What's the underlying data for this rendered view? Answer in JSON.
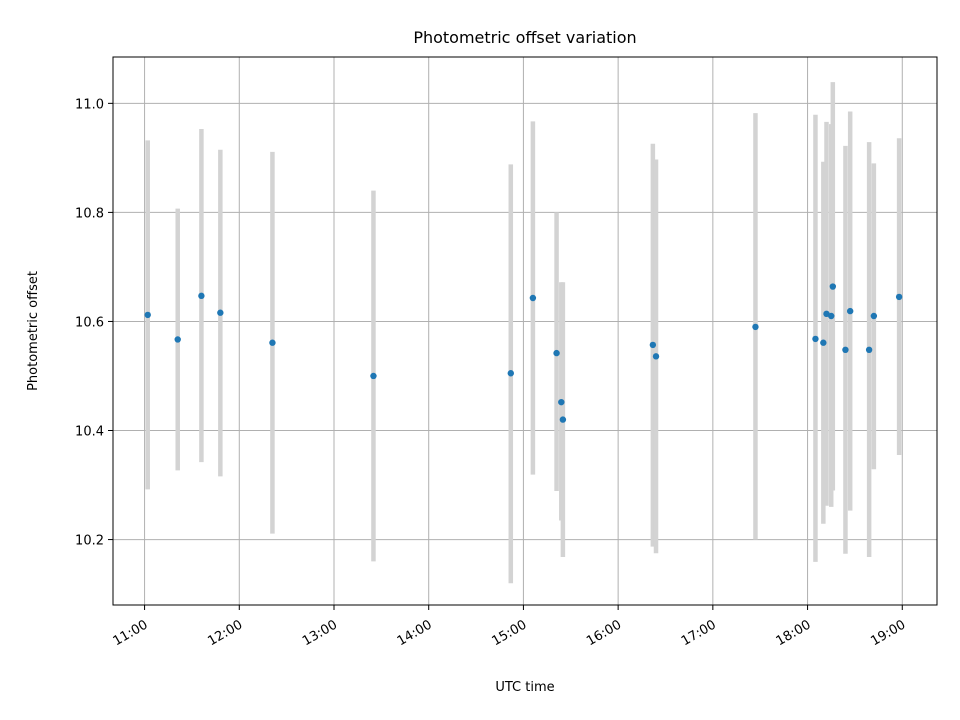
{
  "chart_data": {
    "type": "scatter",
    "title": "Photometric offset variation",
    "xlabel": "UTC time",
    "ylabel": "Photometric offset",
    "x_ticks": [
      "11:00",
      "12:00",
      "13:00",
      "14:00",
      "15:00",
      "16:00",
      "17:00",
      "18:00",
      "19:00"
    ],
    "y_ticks": [
      "10.2",
      "10.4",
      "10.6",
      "10.8",
      "11.0"
    ],
    "xlim": [
      "10:40",
      "19:22"
    ],
    "ylim": [
      10.08,
      11.085
    ],
    "grid": true,
    "colors": {
      "points": "#1f77b4",
      "errorbars": "#d3d3d3",
      "grid": "#b0b0b0"
    },
    "series": [
      {
        "points": [
          {
            "x": "11:02",
            "y": 10.612,
            "err_low": 10.292,
            "err_high": 10.932
          },
          {
            "x": "11:21",
            "y": 10.567,
            "err_low": 10.327,
            "err_high": 10.807
          },
          {
            "x": "11:36",
            "y": 10.647,
            "err_low": 10.342,
            "err_high": 10.953
          },
          {
            "x": "11:48",
            "y": 10.616,
            "err_low": 10.316,
            "err_high": 10.915
          },
          {
            "x": "12:21",
            "y": 10.561,
            "err_low": 10.211,
            "err_high": 10.911
          },
          {
            "x": "13:25",
            "y": 10.5,
            "err_low": 10.16,
            "err_high": 10.84
          },
          {
            "x": "14:52",
            "y": 10.505,
            "err_low": 10.12,
            "err_high": 10.888
          },
          {
            "x": "15:06",
            "y": 10.643,
            "err_low": 10.319,
            "err_high": 10.967
          },
          {
            "x": "15:21",
            "y": 10.542,
            "err_low": 10.289,
            "err_high": 10.8
          },
          {
            "x": "15:24",
            "y": 10.452,
            "err_low": 10.235,
            "err_high": 10.672
          },
          {
            "x": "15:25",
            "y": 10.42,
            "err_low": 10.168,
            "err_high": 10.672
          },
          {
            "x": "16:22",
            "y": 10.557,
            "err_low": 10.187,
            "err_high": 10.926
          },
          {
            "x": "16:24",
            "y": 10.536,
            "err_low": 10.175,
            "err_high": 10.897
          },
          {
            "x": "17:27",
            "y": 10.59,
            "err_low": 10.2,
            "err_high": 10.982
          },
          {
            "x": "18:05",
            "y": 10.568,
            "err_low": 10.159,
            "err_high": 10.979
          },
          {
            "x": "18:10",
            "y": 10.561,
            "err_low": 10.229,
            "err_high": 10.893
          },
          {
            "x": "18:12",
            "y": 10.614,
            "err_low": 10.262,
            "err_high": 10.966
          },
          {
            "x": "18:15",
            "y": 10.61,
            "err_low": 10.26,
            "err_high": 10.962
          },
          {
            "x": "18:16",
            "y": 10.664,
            "err_low": 10.29,
            "err_high": 11.039
          },
          {
            "x": "18:24",
            "y": 10.548,
            "err_low": 10.174,
            "err_high": 10.922
          },
          {
            "x": "18:27",
            "y": 10.619,
            "err_low": 10.253,
            "err_high": 10.985
          },
          {
            "x": "18:39",
            "y": 10.548,
            "err_low": 10.168,
            "err_high": 10.929
          },
          {
            "x": "18:42",
            "y": 10.61,
            "err_low": 10.329,
            "err_high": 10.89
          },
          {
            "x": "18:58",
            "y": 10.645,
            "err_low": 10.355,
            "err_high": 10.936
          }
        ]
      }
    ]
  }
}
